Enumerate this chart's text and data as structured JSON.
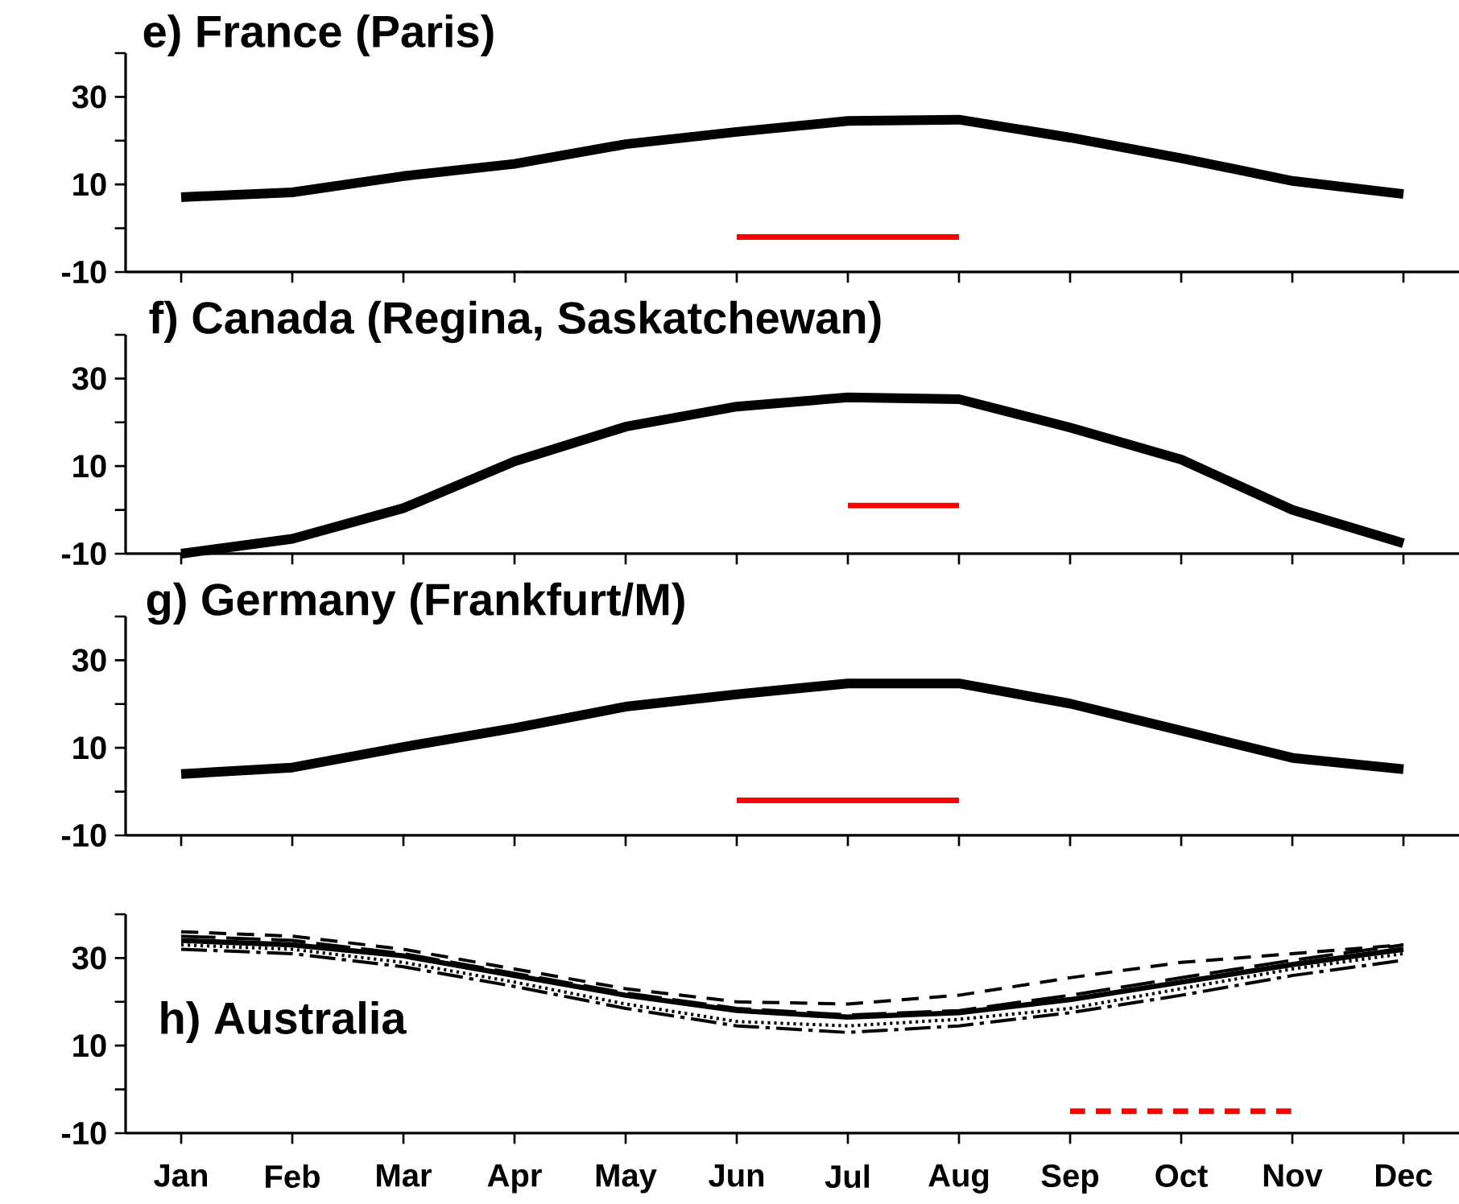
{
  "chart_data": [
    {
      "type": "line",
      "title": "e) France (Paris)",
      "categories": [
        null,
        null,
        null,
        null,
        null,
        null,
        null,
        null,
        null,
        null,
        null,
        null
      ],
      "ylim": [
        -10,
        40
      ],
      "yticks": [
        -10,
        {
          "value": 0,
          "label": null
        },
        10,
        {
          "value": 20,
          "label": null
        },
        30,
        {
          "value": 40,
          "label": null
        }
      ],
      "series": [
        {
          "color": "#000000",
          "line_style": "solid",
          "values": [
            7.1,
            8.2,
            11.9,
            14.7,
            19.2,
            22,
            24.5,
            24.8,
            20.7,
            16,
            10.8,
            7.8
          ]
        },
        {
          "color": "#ff0000",
          "line_style": "solid",
          "values": [
            null,
            null,
            null,
            null,
            null,
            -2,
            -2,
            -2,
            null,
            null,
            null,
            null
          ]
        }
      ]
    },
    {
      "type": "line",
      "title": "f) Canada (Regina, Saskatchewan)",
      "categories": [
        null,
        null,
        null,
        null,
        null,
        null,
        null,
        null,
        null,
        null,
        null,
        null
      ],
      "ylim": [
        -10,
        40
      ],
      "yticks": [
        -10,
        {
          "value": 0,
          "label": null
        },
        10,
        {
          "value": 20,
          "label": null
        },
        30,
        {
          "value": 40,
          "label": null
        }
      ],
      "series": [
        {
          "color": "#000000",
          "line_style": "solid",
          "values": [
            -10,
            -6.6,
            0.4,
            11.1,
            19,
            23.6,
            25.7,
            25.3,
            18.8,
            11.5,
            0,
            -7.6
          ]
        },
        {
          "color": "#ff0000",
          "line_style": "solid",
          "values": [
            null,
            null,
            null,
            null,
            null,
            null,
            1,
            1,
            null,
            null,
            null,
            null
          ]
        }
      ]
    },
    {
      "type": "line",
      "title": "g) Germany (Frankfurt/M)",
      "categories": [
        null,
        null,
        null,
        null,
        null,
        null,
        null,
        null,
        null,
        null,
        null,
        null
      ],
      "ylim": [
        -10,
        40
      ],
      "yticks": [
        -10,
        {
          "value": 0,
          "label": null
        },
        10,
        {
          "value": 20,
          "label": null
        },
        30,
        {
          "value": 40,
          "label": null
        }
      ],
      "series": [
        {
          "color": "#000000",
          "line_style": "solid",
          "values": [
            4,
            5.5,
            10.2,
            14.5,
            19.4,
            22.2,
            24.7,
            24.7,
            20.1,
            13.9,
            7.7,
            5.1
          ]
        },
        {
          "color": "#ff0000",
          "line_style": "solid",
          "values": [
            null,
            null,
            null,
            null,
            null,
            -2,
            -2,
            -2,
            null,
            null,
            null,
            null
          ]
        }
      ]
    },
    {
      "type": "line",
      "title": "h) Australia",
      "categories": [
        "Jan",
        "Feb",
        "Mar",
        "Apr",
        "May",
        "Jun",
        "Jul",
        "Aug",
        "Sep",
        "Oct",
        "Nov",
        "Dec"
      ],
      "ylim": [
        -10,
        40
      ],
      "yticks": [
        -10,
        {
          "value": 0,
          "label": null
        },
        10,
        {
          "value": 20,
          "label": null
        },
        30,
        {
          "value": 40,
          "label": null
        }
      ],
      "series": [
        {
          "color": "#000000",
          "line_style": "solid",
          "values": [
            34,
            33,
            30.5,
            26,
            21.5,
            18,
            16.5,
            17.5,
            20.5,
            24.5,
            28.5,
            32
          ]
        },
        {
          "color": "#000000",
          "line_style": "dashed",
          "values": [
            36,
            35,
            32,
            27.5,
            23,
            20,
            19.5,
            21.5,
            25.5,
            29,
            31,
            33
          ]
        },
        {
          "color": "#000000",
          "line_style": "longdashed",
          "values": [
            35,
            34,
            31,
            26.5,
            22,
            18.5,
            17,
            18,
            21.5,
            25.5,
            29.5,
            33
          ]
        },
        {
          "color": "#000000",
          "line_style": "dashdot",
          "values": [
            32,
            31,
            28,
            23.5,
            18.5,
            14.5,
            13,
            14.5,
            17.5,
            21.5,
            26,
            29.5
          ]
        },
        {
          "color": "#000000",
          "line_style": "dotted",
          "values": [
            33,
            32,
            29,
            24.5,
            19.5,
            15.5,
            14.5,
            16,
            18.5,
            23,
            27.5,
            31
          ]
        },
        {
          "color": "#ff0000",
          "line_style": "dashed",
          "values": [
            null,
            null,
            null,
            null,
            null,
            null,
            null,
            null,
            -5,
            -5,
            -5,
            null
          ]
        }
      ]
    }
  ]
}
